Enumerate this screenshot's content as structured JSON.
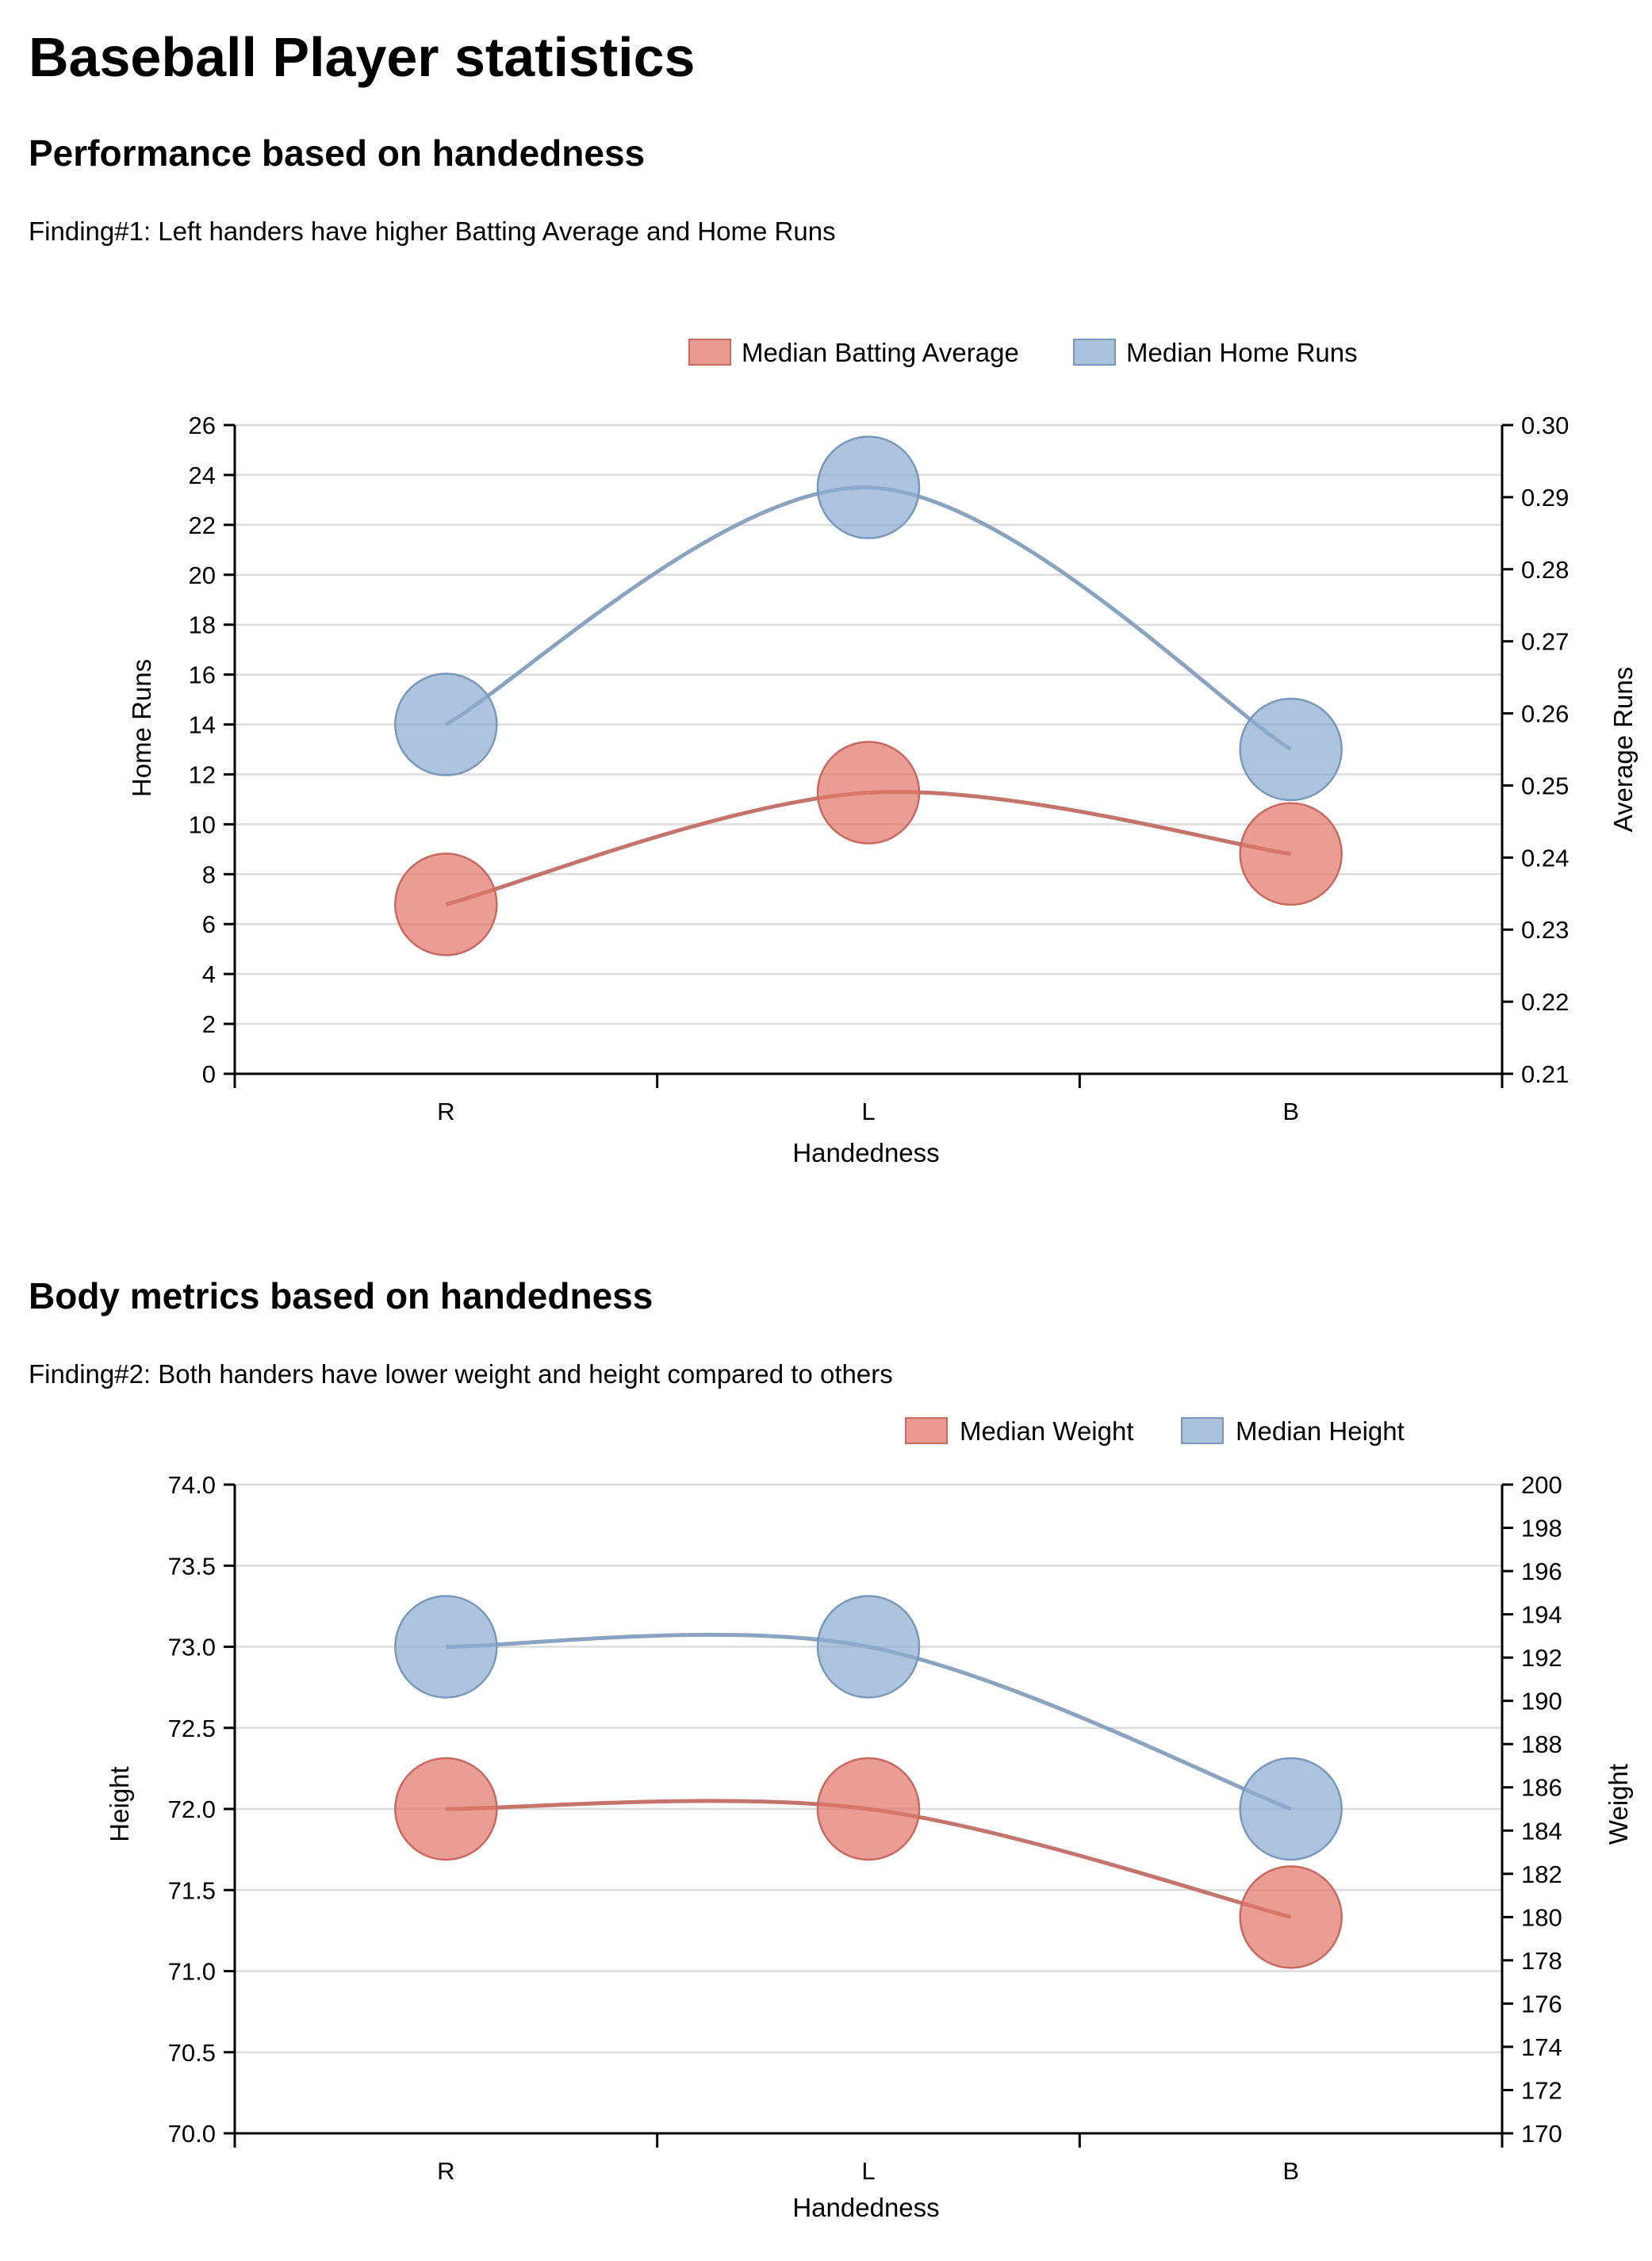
{
  "page": {
    "title": "Baseball Player statistics"
  },
  "sections": [
    {
      "title": "Performance based on handedness",
      "finding": "Finding#1: Left handers have higher Batting Average and Home Runs"
    },
    {
      "title": "Body metrics based on handedness",
      "finding": "Finding#2: Both handers have lower weight and height compared to others"
    }
  ],
  "chart_data": [
    {
      "type": "line",
      "categories": [
        "R",
        "L",
        "B"
      ],
      "xlabel": "Handedness",
      "y_left": {
        "label": "Home Runs",
        "lim": [
          0,
          26
        ],
        "ticks": [
          "0",
          "2",
          "4",
          "6",
          "8",
          "10",
          "12",
          "14",
          "16",
          "18",
          "20",
          "22",
          "24",
          "26"
        ]
      },
      "y_right": {
        "label": "Average Runs",
        "lim": [
          0.21,
          0.3
        ],
        "ticks": [
          "0.21",
          "0.22",
          "0.23",
          "0.24",
          "0.25",
          "0.26",
          "0.27",
          "0.28",
          "0.29",
          "0.30"
        ]
      },
      "series": [
        {
          "name": "Median Batting Average",
          "axis": "right",
          "color": "#e0776b",
          "values": [
            0.2335,
            0.249,
            0.2405
          ]
        },
        {
          "name": "Median Home Runs",
          "axis": "left",
          "color": "#8fadd1",
          "values": [
            14,
            23.5,
            13
          ]
        }
      ],
      "grid": true,
      "legend": "top-right"
    },
    {
      "type": "line",
      "categories": [
        "R",
        "L",
        "B"
      ],
      "xlabel": "Handedness",
      "y_left": {
        "label": "Height",
        "lim": [
          70.0,
          74.0
        ],
        "ticks": [
          "70.0",
          "70.5",
          "71.0",
          "71.5",
          "72.0",
          "72.5",
          "73.0",
          "73.5",
          "74.0"
        ]
      },
      "y_right": {
        "label": "Weight",
        "lim": [
          170,
          200
        ],
        "ticks": [
          "170",
          "172",
          "174",
          "176",
          "178",
          "180",
          "182",
          "184",
          "186",
          "188",
          "190",
          "192",
          "194",
          "196",
          "198",
          "200"
        ]
      },
      "series": [
        {
          "name": "Median Weight",
          "axis": "right",
          "color": "#e0776b",
          "values": [
            185,
            185,
            180
          ]
        },
        {
          "name": "Median Height",
          "axis": "left",
          "color": "#8fadd1",
          "values": [
            73,
            73,
            72
          ]
        }
      ],
      "grid": true,
      "legend": "top-right"
    }
  ]
}
